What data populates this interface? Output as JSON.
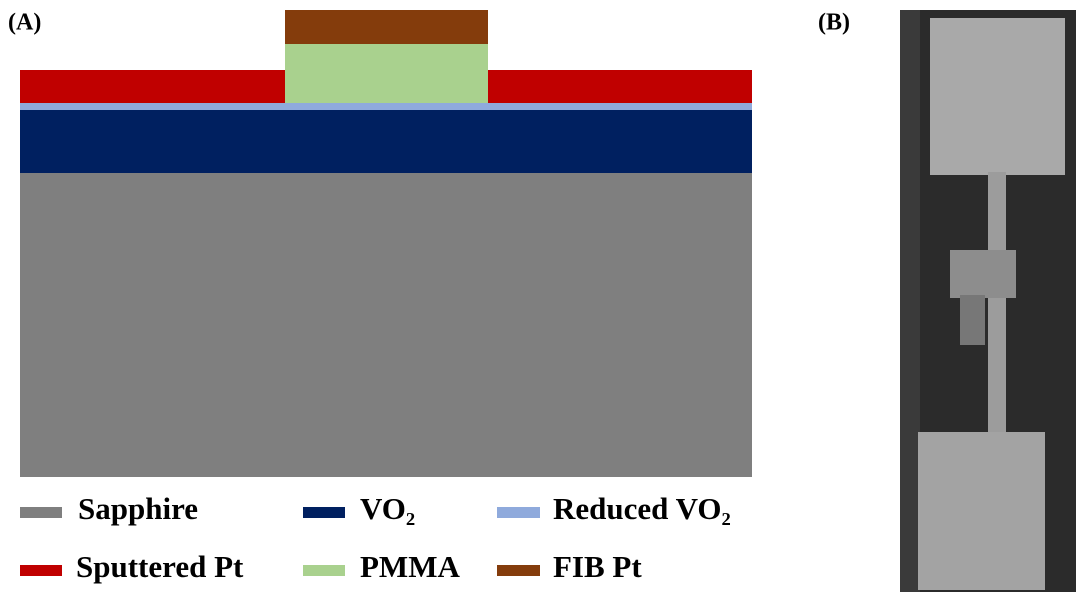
{
  "panels": {
    "a": {
      "label": "(A)",
      "legend": [
        "Sapphire",
        "VO₂",
        "Reduced VO₂",
        "Sputtered Pt",
        "PMMA",
        "FIB Pt"
      ]
    },
    "b": {
      "label": "(B)"
    }
  }
}
